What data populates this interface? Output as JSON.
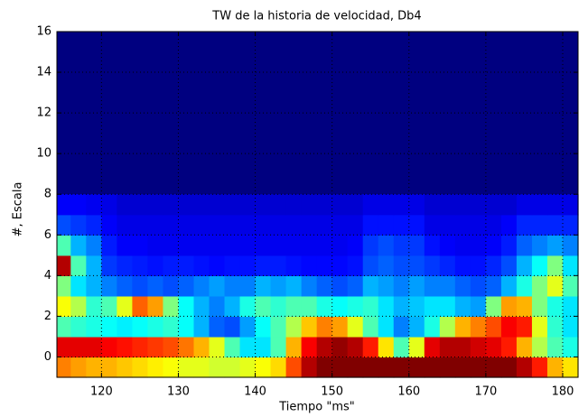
{
  "chart_data": {
    "type": "heatmap",
    "title": "TW de la historia de velocidad, Db4",
    "x_label": "Tiempo \"ms\"",
    "y_label": "#, Escala",
    "colormap": "jet",
    "grid": true,
    "xlim": [
      114.2,
      182
    ],
    "ylim": [
      -1,
      16
    ],
    "xticks": [
      120,
      130,
      140,
      150,
      160,
      170,
      180
    ],
    "yticks": [
      0,
      2,
      4,
      6,
      8,
      10,
      12,
      14,
      16
    ],
    "x": [
      115,
      117,
      119,
      121,
      123,
      125,
      127,
      129,
      131,
      133,
      135,
      137,
      139,
      141,
      143,
      145,
      147,
      149,
      151,
      153,
      155,
      157,
      159,
      161,
      163,
      165,
      167,
      169,
      171,
      173,
      175,
      177,
      179,
      181
    ],
    "y": [
      -0.5,
      0.5,
      1.5,
      2.5,
      3.5,
      4.5,
      5.5,
      6.5,
      7.5
    ],
    "z": [
      [
        0.75,
        0.72,
        0.7,
        0.7,
        0.68,
        0.66,
        0.64,
        0.62,
        0.6,
        0.6,
        0.58,
        0.58,
        0.6,
        0.62,
        0.66,
        0.8,
        0.95,
        1,
        1,
        1,
        1,
        1,
        1,
        1,
        1,
        1,
        1,
        1,
        1,
        1,
        0.95,
        0.85,
        0.7,
        0.65
      ],
      [
        0.9,
        0.9,
        0.9,
        0.88,
        0.86,
        0.84,
        0.82,
        0.8,
        0.76,
        0.7,
        0.6,
        0.45,
        0.35,
        0.35,
        0.45,
        0.7,
        0.88,
        0.95,
        0.98,
        0.95,
        0.85,
        0.65,
        0.45,
        0.6,
        0.9,
        0.95,
        0.95,
        0.92,
        0.9,
        0.85,
        0.7,
        0.55,
        0.45,
        0.4
      ],
      [
        0.45,
        0.42,
        0.4,
        0.38,
        0.36,
        0.38,
        0.4,
        0.42,
        0.38,
        0.3,
        0.22,
        0.2,
        0.28,
        0.38,
        0.45,
        0.55,
        0.68,
        0.75,
        0.72,
        0.6,
        0.45,
        0.35,
        0.25,
        0.3,
        0.4,
        0.55,
        0.7,
        0.75,
        0.8,
        0.88,
        0.85,
        0.6,
        0.42,
        0.35
      ],
      [
        0.62,
        0.55,
        0.42,
        0.45,
        0.6,
        0.78,
        0.72,
        0.5,
        0.38,
        0.3,
        0.25,
        0.3,
        0.4,
        0.45,
        0.42,
        0.45,
        0.45,
        0.4,
        0.38,
        0.4,
        0.42,
        0.35,
        0.3,
        0.32,
        0.35,
        0.35,
        0.3,
        0.28,
        0.5,
        0.72,
        0.7,
        0.5,
        0.4,
        0.35
      ],
      [
        0.5,
        0.35,
        0.3,
        0.25,
        0.22,
        0.2,
        0.22,
        0.2,
        0.22,
        0.25,
        0.28,
        0.25,
        0.25,
        0.3,
        0.28,
        0.3,
        0.25,
        0.22,
        0.2,
        0.22,
        0.3,
        0.28,
        0.25,
        0.28,
        0.25,
        0.25,
        0.22,
        0.2,
        0.22,
        0.3,
        0.4,
        0.5,
        0.6,
        0.45
      ],
      [
        0.95,
        0.45,
        0.3,
        0.18,
        0.16,
        0.15,
        0.14,
        0.15,
        0.15,
        0.14,
        0.13,
        0.14,
        0.14,
        0.15,
        0.15,
        0.14,
        0.13,
        0.13,
        0.13,
        0.14,
        0.2,
        0.22,
        0.2,
        0.2,
        0.18,
        0.16,
        0.14,
        0.14,
        0.16,
        0.2,
        0.3,
        0.38,
        0.5,
        0.35
      ],
      [
        0.45,
        0.3,
        0.25,
        0.15,
        0.12,
        0.12,
        0.11,
        0.11,
        0.11,
        0.11,
        0.11,
        0.11,
        0.11,
        0.11,
        0.11,
        0.11,
        0.11,
        0.11,
        0.11,
        0.12,
        0.18,
        0.2,
        0.18,
        0.18,
        0.14,
        0.12,
        0.11,
        0.11,
        0.12,
        0.15,
        0.22,
        0.25,
        0.28,
        0.25
      ],
      [
        0.2,
        0.18,
        0.16,
        0.12,
        0.1,
        0.1,
        0.1,
        0.1,
        0.1,
        0.1,
        0.1,
        0.1,
        0.1,
        0.1,
        0.1,
        0.1,
        0.1,
        0.1,
        0.1,
        0.1,
        0.14,
        0.14,
        0.14,
        0.14,
        0.1,
        0.1,
        0.1,
        0.1,
        0.1,
        0.12,
        0.16,
        0.16,
        0.16,
        0.16
      ],
      [
        0.12,
        0.12,
        0.11,
        0.1,
        0.08,
        0.08,
        0.08,
        0.08,
        0.08,
        0.08,
        0.08,
        0.08,
        0.08,
        0.08,
        0.08,
        0.08,
        0.08,
        0.08,
        0.08,
        0.08,
        0.1,
        0.1,
        0.1,
        0.1,
        0.08,
        0.08,
        0.08,
        0.08,
        0.08,
        0.08,
        0.1,
        0.1,
        0.1,
        0.1
      ]
    ]
  }
}
